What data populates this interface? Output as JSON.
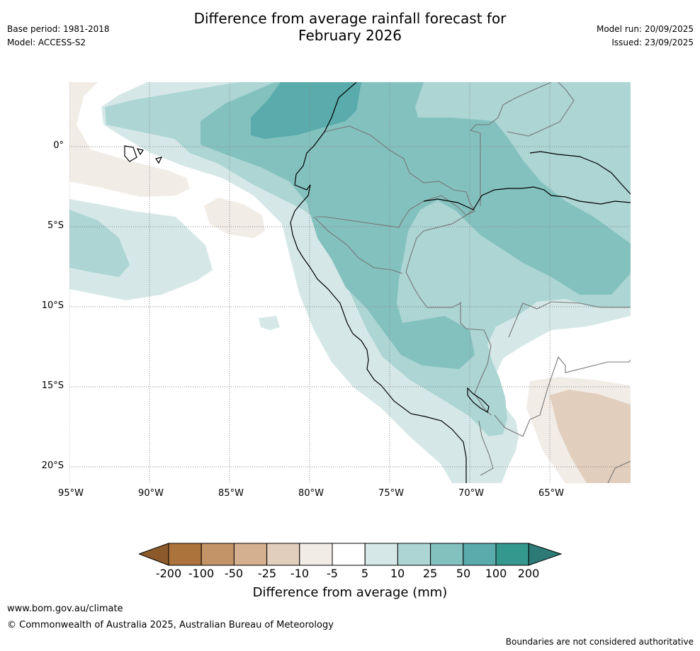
{
  "title": {
    "line1": "Difference from average rainfall forecast for",
    "line2": "February 2026"
  },
  "meta": {
    "base_period": "Base period: 1981-2018",
    "model": "Model: ACCESS-S2",
    "model_run": "Model run: 20/09/2025",
    "issued": "Issued: 23/09/2025"
  },
  "map": {
    "lat_labels": [
      "0°",
      "5°S",
      "10°S",
      "15°S",
      "20°S"
    ],
    "lon_labels": [
      "95°W",
      "90°W",
      "85°W",
      "80°W",
      "75°W",
      "70°W",
      "65°W"
    ],
    "region": "Peru and surrounding South America / eastern Pacific"
  },
  "colorbar": {
    "title": "Difference from average (mm)",
    "labels": [
      "-200",
      "-100",
      "-50",
      "-25",
      "-10",
      "-5",
      "5",
      "10",
      "25",
      "50",
      "100",
      "200"
    ],
    "colors": [
      "#8c5a2a",
      "#ad733c",
      "#c29468",
      "#d4b08f",
      "#e2cebc",
      "#f1ece6",
      "#ffffff",
      "#d5e8e7",
      "#acd5d4",
      "#83c1bf",
      "#5aabab",
      "#35988f",
      "#2c7b76"
    ]
  },
  "footer": {
    "url": "www.bom.gov.au/climate",
    "copyright": "© Commonwealth of Australia 2025, Australian Bureau of Meteorology",
    "disclaimer": "Boundaries are not considered authoritative"
  }
}
